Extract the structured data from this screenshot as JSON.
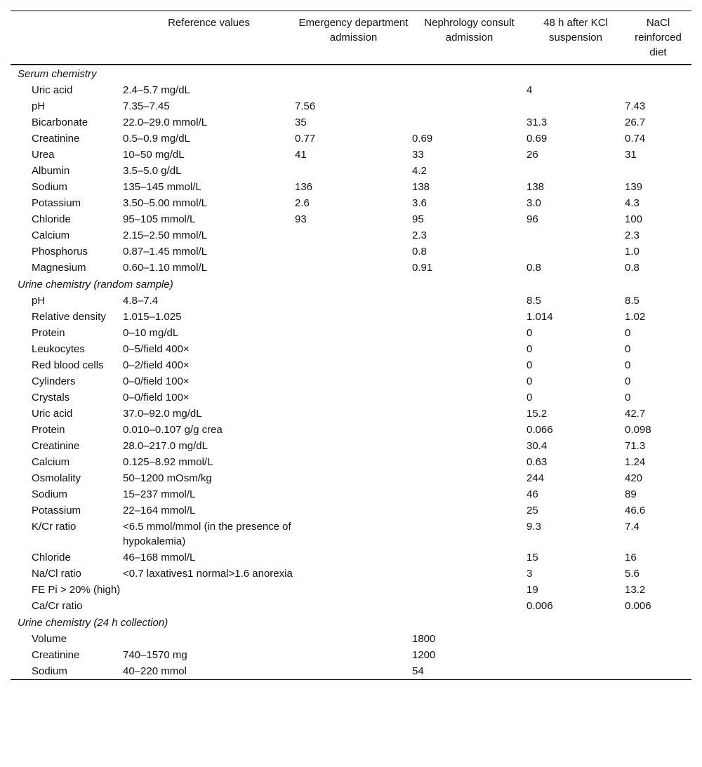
{
  "table": {
    "headers": {
      "reference": "Reference values",
      "ed": "Emergency department admission",
      "nephrology": "Nephrology consult admission",
      "kcl": "48 h after KCl suspension",
      "nacl": "NaCl reinforced diet"
    },
    "sections": [
      {
        "title": "Serum chemistry",
        "rows": [
          {
            "parameter": "Uric acid",
            "reference": "2.4–5.7 mg/dL",
            "kcl": "4"
          },
          {
            "parameter": "pH",
            "reference": "7.35–7.45",
            "ed": "7.56",
            "nacl": "7.43"
          },
          {
            "parameter": "Bicarbonate",
            "reference": "22.0–29.0 mmol/L",
            "ed": "35",
            "kcl": "31.3",
            "nacl": "26.7"
          },
          {
            "parameter": "Creatinine",
            "reference": "0.5–0.9 mg/dL",
            "ed": "0.77",
            "nephrology": "0.69",
            "kcl": "0.69",
            "nacl": "0.74"
          },
          {
            "parameter": "Urea",
            "reference": "10–50 mg/dL",
            "ed": "41",
            "nephrology": "33",
            "kcl": "26",
            "nacl": "31"
          },
          {
            "parameter": "Albumin",
            "reference": "3.5–5.0 g/dL",
            "nephrology": "4.2"
          },
          {
            "parameter": "Sodium",
            "reference": "135–145 mmol/L",
            "ed": "136",
            "nephrology": "138",
            "kcl": "138",
            "nacl": "139"
          },
          {
            "parameter": "Potassium",
            "reference": "3.50–5.00 mmol/L",
            "ed": "2.6",
            "nephrology": "3.6",
            "kcl": "3.0",
            "nacl": "4.3"
          },
          {
            "parameter": "Chloride",
            "reference": "95–105 mmol/L",
            "ed": "93",
            "nephrology": "95",
            "kcl": "96",
            "nacl": "100"
          },
          {
            "parameter": "Calcium",
            "reference": "2.15–2.50 mmol/L",
            "nephrology": "2.3",
            "nacl": "2.3"
          },
          {
            "parameter": "Phosphorus",
            "reference": "0.87–1.45 mmol/L",
            "nephrology": "0.8",
            "nacl": "1.0"
          },
          {
            "parameter": "Magnesium",
            "reference": "0.60–1.10 mmol/L",
            "nephrology": "0.91",
            "kcl": "0.8",
            "nacl": "0.8"
          }
        ]
      },
      {
        "title": "Urine chemistry (random sample)",
        "rows": [
          {
            "parameter": "pH",
            "reference": "4.8–7.4",
            "kcl": "8.5",
            "nacl": "8.5"
          },
          {
            "parameter": "Relative density",
            "reference": "1.015–1.025",
            "kcl": "1.014",
            "nacl": "1.02"
          },
          {
            "parameter": "Protein",
            "reference": "0–10 mg/dL",
            "kcl": "0",
            "nacl": "0"
          },
          {
            "parameter": "Leukocytes",
            "reference": "0–5/field 400×",
            "kcl": "0",
            "nacl": "0"
          },
          {
            "parameter": "Red blood cells",
            "reference": "0–2/field 400×",
            "kcl": "0",
            "nacl": "0"
          },
          {
            "parameter": "Cylinders",
            "reference": "0–0/field 100×",
            "kcl": "0",
            "nacl": "0"
          },
          {
            "parameter": "Crystals",
            "reference": "0–0/field 100×",
            "kcl": "0",
            "nacl": "0"
          },
          {
            "parameter": "Uric acid",
            "reference": "37.0–92.0 mg/dL",
            "kcl": "15.2",
            "nacl": "42.7"
          },
          {
            "parameter": "Protein",
            "reference": "0.010–0.107 g/g crea",
            "kcl": "0.066",
            "nacl": "0.098"
          },
          {
            "parameter": "Creatinine",
            "reference": "28.0–217.0 mg/dL",
            "kcl": "30.4",
            "nacl": "71.3"
          },
          {
            "parameter": "Calcium",
            "reference": "0.125–8.92 mmol/L",
            "kcl": "0.63",
            "nacl": "1.24"
          },
          {
            "parameter": "Osmolality",
            "reference": "50–1200 mOsm/kg",
            "kcl": "244",
            "nacl": "420"
          },
          {
            "parameter": "Sodium",
            "reference": "15–237 mmol/L",
            "kcl": "46",
            "nacl": "89"
          },
          {
            "parameter": "Potassium",
            "reference": "22–164 mmol/L",
            "kcl": "25",
            "nacl": "46.6"
          },
          {
            "parameter": "K/Cr ratio",
            "reference": "<6.5 mmol/mmol (in the presence of hypokalemia)",
            "kcl": "9.3",
            "nacl": "7.4"
          },
          {
            "parameter": "Chloride",
            "reference": "46–168 mmol/L",
            "kcl": "15",
            "nacl": "16"
          },
          {
            "parameter": "Na/Cl ratio",
            "reference": "<0.7 laxatives1 normal>1.6 anorexia",
            "kcl": "3",
            "nacl": "5.6"
          },
          {
            "parameter": "FE Pi > 20% (high)",
            "kcl": "19",
            "nacl": "13.2"
          },
          {
            "parameter": "Ca/Cr ratio",
            "kcl": "0.006",
            "nacl": "0.006"
          }
        ]
      },
      {
        "title": "Urine chemistry (24 h collection)",
        "rows": [
          {
            "parameter": "Volume",
            "nephrology": "1800"
          },
          {
            "parameter": "Creatinine",
            "reference": "740–1570 mg",
            "nephrology": "1200"
          },
          {
            "parameter": "Sodium",
            "reference": "40–220 mmol",
            "nephrology": "54"
          }
        ]
      }
    ]
  }
}
